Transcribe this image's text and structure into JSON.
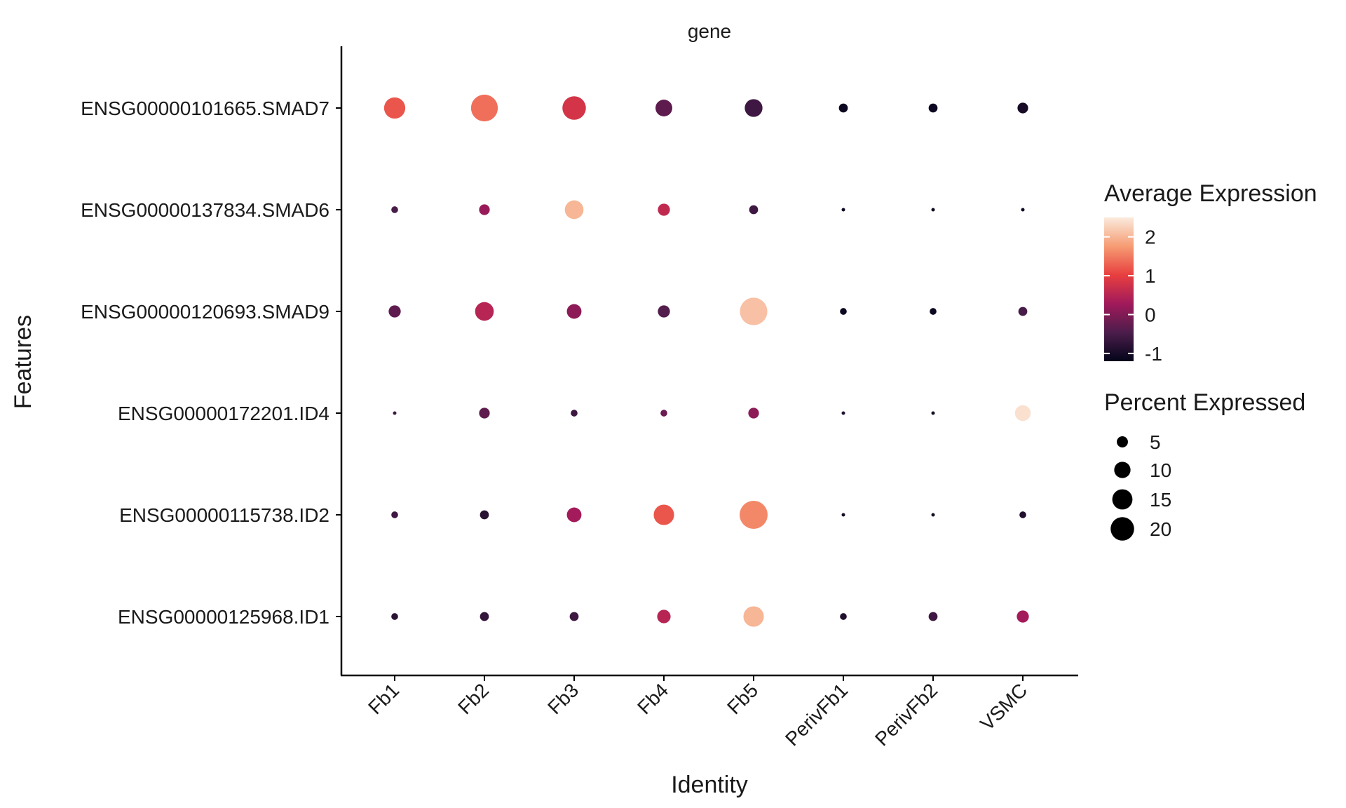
{
  "chart_data": {
    "type": "dot",
    "facet_title": "gene",
    "xlabel": "Identity",
    "ylabel": "Features",
    "identities": [
      "Fb1",
      "Fb2",
      "Fb3",
      "Fb4",
      "Fb5",
      "PerivFb1",
      "PerivFb2",
      "VSMC"
    ],
    "features": [
      "ENSG00000101665.SMAD7",
      "ENSG00000137834.SMAD6",
      "ENSG00000120693.SMAD9",
      "ENSG00000172201.ID4",
      "ENSG00000115738.ID2",
      "ENSG00000125968.ID1"
    ],
    "avg_expression": [
      [
        1.2,
        1.4,
        0.8,
        -0.3,
        -0.6,
        -1.1,
        -1.1,
        -1.0
      ],
      [
        -0.5,
        0.2,
        2.0,
        0.6,
        -0.6,
        -1.1,
        -1.1,
        -1.1
      ],
      [
        -0.3,
        0.5,
        0.1,
        -0.4,
        2.1,
        -1.1,
        -1.1,
        -0.5
      ],
      [
        -0.6,
        -0.3,
        -0.6,
        -0.2,
        0.1,
        -0.9,
        -1.0,
        2.4
      ],
      [
        -0.6,
        -0.8,
        0.3,
        1.2,
        1.6,
        -1.0,
        -1.0,
        -0.9
      ],
      [
        -0.8,
        -0.7,
        -0.6,
        0.5,
        2.0,
        -0.9,
        -0.6,
        0.3
      ]
    ],
    "pct_expressed": [
      [
        14,
        22,
        17,
        9,
        10,
        3,
        3,
        4
      ],
      [
        2,
        4,
        11,
        5,
        3,
        1,
        1,
        1
      ],
      [
        5,
        11,
        7,
        5,
        23,
        2,
        2,
        3
      ],
      [
        1,
        4,
        2,
        2,
        4,
        1,
        1,
        8
      ],
      [
        2,
        3,
        7,
        13,
        24,
        1,
        1,
        2
      ],
      [
        2,
        3,
        3,
        6,
        13,
        2,
        3,
        5
      ]
    ],
    "color_legend": {
      "title": "Average Expression",
      "ticks": [
        "2",
        "1",
        "0",
        "-1"
      ],
      "tick_values": [
        2,
        1,
        0,
        -1
      ],
      "range": [
        -1.2,
        2.5
      ],
      "colors": [
        "#03051A",
        "#4C1D4B",
        "#A11A5B",
        "#E83F3F",
        "#F69C73",
        "#FAEBDD"
      ]
    },
    "size_legend": {
      "title": "Percent Expressed",
      "ticks": [
        "5",
        "10",
        "15",
        "20"
      ],
      "tick_values": [
        5,
        10,
        15,
        20
      ],
      "range": [
        1,
        24
      ]
    }
  }
}
